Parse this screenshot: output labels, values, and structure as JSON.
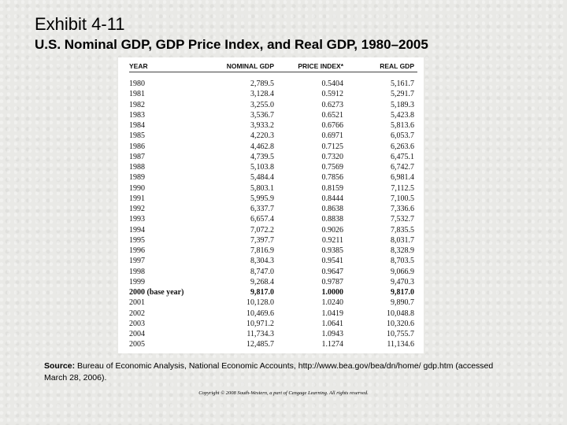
{
  "title": "Exhibit 4-11",
  "subtitle": "U.S. Nominal GDP, GDP Price Index, and Real GDP, 1980–2005",
  "table": {
    "headers": [
      "YEAR",
      "NOMINAL GDP",
      "PRICE INDEX*",
      "REAL GDP"
    ],
    "rows": [
      [
        "1980",
        "2,789.5",
        "0.5404",
        "5,161.7"
      ],
      [
        "1981",
        "3,128.4",
        "0.5912",
        "5,291.7"
      ],
      [
        "1982",
        "3,255.0",
        "0.6273",
        "5,189.3"
      ],
      [
        "1983",
        "3,536.7",
        "0.6521",
        "5,423.8"
      ],
      [
        "1984",
        "3,933.2",
        "0.6766",
        "5,813.6"
      ],
      [
        "1985",
        "4,220.3",
        "0.6971",
        "6,053.7"
      ],
      [
        "1986",
        "4,462.8",
        "0.7125",
        "6,263.6"
      ],
      [
        "1987",
        "4,739.5",
        "0.7320",
        "6,475.1"
      ],
      [
        "1988",
        "5,103.8",
        "0.7569",
        "6,742.7"
      ],
      [
        "1989",
        "5,484.4",
        "0.7856",
        "6,981.4"
      ],
      [
        "1990",
        "5,803.1",
        "0.8159",
        "7,112.5"
      ],
      [
        "1991",
        "5,995.9",
        "0.8444",
        "7,100.5"
      ],
      [
        "1992",
        "6,337.7",
        "0.8638",
        "7,336.6"
      ],
      [
        "1993",
        "6,657.4",
        "0.8838",
        "7,532.7"
      ],
      [
        "1994",
        "7,072.2",
        "0.9026",
        "7,835.5"
      ],
      [
        "1995",
        "7,397.7",
        "0.9211",
        "8,031.7"
      ],
      [
        "1996",
        "7,816.9",
        "0.9385",
        "8,328.9"
      ],
      [
        "1997",
        "8,304.3",
        "0.9541",
        "8,703.5"
      ],
      [
        "1998",
        "8,747.0",
        "0.9647",
        "9,066.9"
      ],
      [
        "1999",
        "9,268.4",
        "0.9787",
        "9,470.3"
      ],
      [
        "2000 (base year)",
        "9,817.0",
        "1.0000",
        "9,817.0"
      ],
      [
        "2001",
        "10,128.0",
        "1.0240",
        "9,890.7"
      ],
      [
        "2002",
        "10,469.6",
        "1.0419",
        "10,048.8"
      ],
      [
        "2003",
        "10,971.2",
        "1.0641",
        "10,320.6"
      ],
      [
        "2004",
        "11,734.3",
        "1.0943",
        "10,755.7"
      ],
      [
        "2005",
        "12,485.7",
        "1.1274",
        "11,134.6"
      ]
    ],
    "bold_row_index": 20
  },
  "source": {
    "label": "Source:",
    "text": " Bureau of Economic Analysis, National Economic Accounts, http://www.bea.gov/bea/dn/home/ gdp.htm (accessed March 28, 2006)."
  },
  "copyright": "Copyright © 2008 South-Western, a part of Cengage Learning. All rights reserved."
}
